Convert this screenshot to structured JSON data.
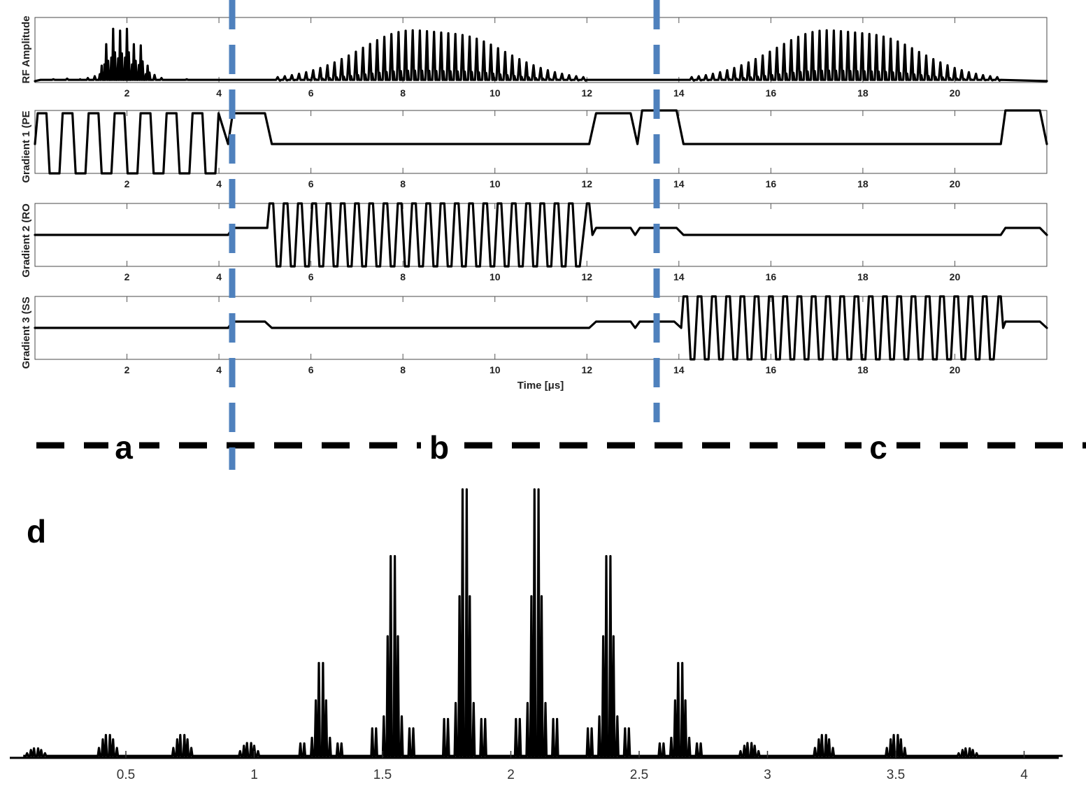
{
  "chart_data": [
    {
      "type": "line",
      "panel": "RF",
      "ylabel": "RF Amplitude",
      "xlabel": "",
      "xlim": [
        0,
        22
      ],
      "xticks": [
        2,
        4,
        6,
        8,
        10,
        12,
        14,
        16,
        18,
        20
      ],
      "description_values": {
        "pulse_a": {
          "start": 0.1,
          "end": 4.1,
          "peaks": [
            1.0,
            1.15,
            1.3,
            1.45,
            1.55,
            1.7,
            1.85,
            2.0,
            2.15,
            2.3,
            2.45,
            2.6,
            2.75,
            3.0
          ],
          "peak_heights": [
            0.02,
            0.05,
            0.08,
            0.25,
            0.6,
            0.85,
            0.82,
            0.85,
            0.6,
            0.58,
            0.25,
            0.1,
            0.05,
            0.02
          ]
        },
        "pulse_b": {
          "start": 5.2,
          "end": 12.0,
          "center": 8.6,
          "max": 0.95
        },
        "pulse_c": {
          "start": 14.2,
          "end": 21.0,
          "center": 17.6,
          "max": 0.95
        }
      }
    },
    {
      "type": "line",
      "panel": "G1",
      "ylabel": "Gradient 1 (PE)",
      "xlabel": "",
      "xlim": [
        0,
        22
      ],
      "xticks": [
        2,
        4,
        6,
        8,
        10,
        12,
        14,
        16,
        18,
        20
      ]
    },
    {
      "type": "line",
      "panel": "G2",
      "ylabel": "Gradient 2 (RO",
      "xlabel": "",
      "xlim": [
        0,
        22
      ],
      "xticks": [
        2,
        4,
        6,
        8,
        10,
        12,
        14,
        16,
        18,
        20
      ]
    },
    {
      "type": "line",
      "panel": "G3",
      "ylabel": "Gradient 3 (SS)",
      "xlabel": "Time [μs]",
      "xlim": [
        0,
        22
      ],
      "xticks": [
        2,
        4,
        6,
        8,
        10,
        12,
        14,
        16,
        18,
        20
      ]
    },
    {
      "type": "line",
      "panel": "d",
      "ylabel": "",
      "xlabel": "",
      "xlim": [
        0.1,
        4.15
      ],
      "xticks": [
        0.5,
        1,
        1.5,
        2,
        2.5,
        3,
        3.5,
        4
      ],
      "groups_center": [
        0.15,
        0.43,
        0.72,
        0.98,
        1.26,
        1.54,
        1.82,
        2.1,
        2.38,
        2.66,
        2.93,
        3.22,
        3.5,
        3.78
      ],
      "groups_height": [
        0.03,
        0.08,
        0.08,
        0.05,
        0.35,
        0.75,
        1.0,
        1.0,
        0.75,
        0.35,
        0.05,
        0.08,
        0.08,
        0.03
      ]
    }
  ],
  "tick_text": {
    "top": [
      "2",
      "4",
      "6",
      "8",
      "10",
      "12",
      "14",
      "16",
      "18",
      "20"
    ],
    "d": [
      "0.5",
      "1",
      "1.5",
      "2",
      "2.5",
      "3",
      "3.5",
      "4"
    ]
  },
  "labels": {
    "rf": "RF Amplitude",
    "g1": "Gradient 1 (PE",
    "g2": "Gradient 2 (RO",
    "g3": "Gradient 3 (SS",
    "time": "Time [μs]",
    "a": "a",
    "b": "b",
    "c": "c",
    "d": "d"
  },
  "colors": {
    "trace": "#000000",
    "divider": "#4f81bd"
  }
}
